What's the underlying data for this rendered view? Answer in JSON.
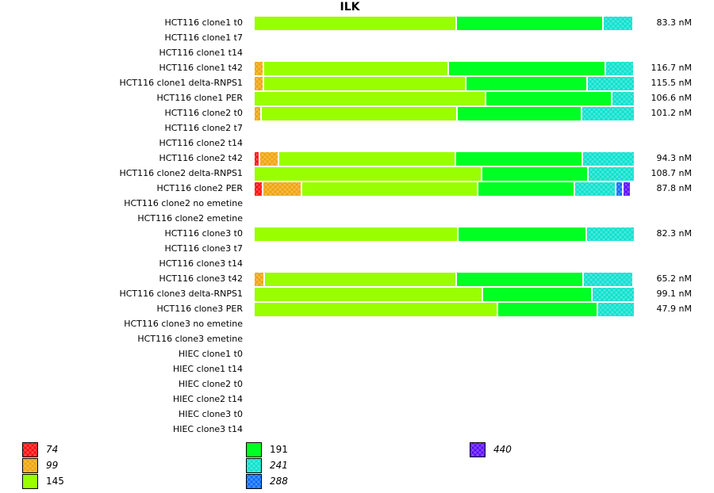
{
  "chart_data": {
    "type": "bar",
    "orientation": "horizontal-stacked",
    "title": "ILK",
    "unit": "nM",
    "segment_units": "fraction of bar",
    "categories": [
      "HCT116 clone1 t0",
      "HCT116 clone1 t7",
      "HCT116 clone1 t14",
      "HCT116 clone1 t42",
      "HCT116 clone1 delta-RNPS1",
      "HCT116 clone1 PER",
      "HCT116 clone2 t0",
      "HCT116 clone2 t7",
      "HCT116 clone2 t14",
      "HCT116 clone2 t42",
      "HCT116 clone2 delta-RNPS1",
      "HCT116 clone2 PER",
      "HCT116 clone2 no emetine",
      "HCT116 clone2 emetine",
      "HCT116 clone3 t0",
      "HCT116 clone3 t7",
      "HCT116 clone3 t14",
      "HCT116 clone3 t42",
      "HCT116 clone3 delta-RNPS1",
      "HCT116 clone3 PER",
      "HCT116 clone3 no emetine",
      "HCT116 clone3 emetine",
      "HIEC clone1 t0",
      "HIEC clone1 t14",
      "HIEC clone2 t0",
      "HIEC clone2 t14",
      "HIEC clone3 t0",
      "HIEC clone3 t14"
    ],
    "concentrations": [
      "83.3 nM",
      "",
      "",
      "116.7 nM",
      "115.5 nM",
      "106.6 nM",
      "101.2 nM",
      "",
      "",
      "94.3 nM",
      "108.7 nM",
      "87.8 nM",
      "",
      "",
      "82.3 nM",
      "",
      "",
      "65.2 nM",
      "99.1 nM",
      "47.9 nM",
      "",
      "",
      "",
      "",
      "",
      "",
      "",
      ""
    ],
    "legend": [
      {
        "label": "74",
        "color": "#ff0000",
        "pattern": true,
        "italic": true
      },
      {
        "label": "99",
        "color": "#f0a000",
        "pattern": true,
        "italic": true
      },
      {
        "label": "145",
        "color": "#99ff00",
        "pattern": false,
        "italic": false
      },
      {
        "label": "191",
        "color": "#00ff22",
        "pattern": false,
        "italic": false
      },
      {
        "label": "241",
        "color": "#00e0cc",
        "pattern": true,
        "italic": true
      },
      {
        "label": "288",
        "color": "#0066ff",
        "pattern": true,
        "italic": true
      },
      {
        "label": "440",
        "color": "#5500ff",
        "pattern": true,
        "italic": true
      }
    ],
    "series": [
      {
        "name": "74",
        "values": [
          0,
          0,
          0,
          0,
          0,
          0,
          0,
          0,
          0,
          0.015,
          0,
          0.022,
          0,
          0,
          0,
          0,
          0,
          0,
          0,
          0,
          0,
          0,
          0,
          0,
          0,
          0,
          0,
          0
        ]
      },
      {
        "name": "99",
        "values": [
          0,
          0,
          0,
          0.025,
          0.025,
          0,
          0.018,
          0,
          0,
          0.05,
          0,
          0.103,
          0,
          0,
          0,
          0,
          0,
          0.027,
          0,
          0,
          0,
          0,
          0,
          0,
          0,
          0,
          0,
          0
        ]
      },
      {
        "name": "145",
        "values": [
          0.531,
          0,
          0,
          0.485,
          0.531,
          0.608,
          0.515,
          0,
          0,
          0.465,
          0.598,
          0.463,
          0,
          0,
          0.535,
          0,
          0,
          0.505,
          0.6,
          0.64,
          0,
          0,
          0,
          0,
          0,
          0,
          0,
          0
        ]
      },
      {
        "name": "191",
        "values": [
          0.385,
          0,
          0,
          0.413,
          0.318,
          0.332,
          0.327,
          0,
          0,
          0.333,
          0.28,
          0.253,
          0,
          0,
          0.337,
          0,
          0,
          0.332,
          0.287,
          0.263,
          0,
          0,
          0,
          0,
          0,
          0,
          0,
          0
        ]
      },
      {
        "name": "241",
        "values": [
          0.08,
          0,
          0,
          0.074,
          0.126,
          0.06,
          0.14,
          0,
          0,
          0.137,
          0.122,
          0.11,
          0,
          0,
          0.128,
          0,
          0,
          0.132,
          0.113,
          0.097,
          0,
          0,
          0,
          0,
          0,
          0,
          0,
          0
        ]
      },
      {
        "name": "288",
        "values": [
          0,
          0,
          0,
          0,
          0,
          0,
          0,
          0,
          0,
          0,
          0,
          0.017,
          0,
          0,
          0,
          0,
          0,
          0,
          0,
          0,
          0,
          0,
          0,
          0,
          0,
          0,
          0,
          0
        ]
      },
      {
        "name": "440",
        "values": [
          0,
          0,
          0,
          0,
          0,
          0,
          0,
          0,
          0,
          0,
          0,
          0.022,
          0,
          0,
          0,
          0,
          0,
          0,
          0,
          0,
          0,
          0,
          0,
          0,
          0,
          0,
          0,
          0
        ]
      }
    ],
    "xlabel": "",
    "ylabel": "",
    "grid": false,
    "legend_position": "bottom"
  }
}
